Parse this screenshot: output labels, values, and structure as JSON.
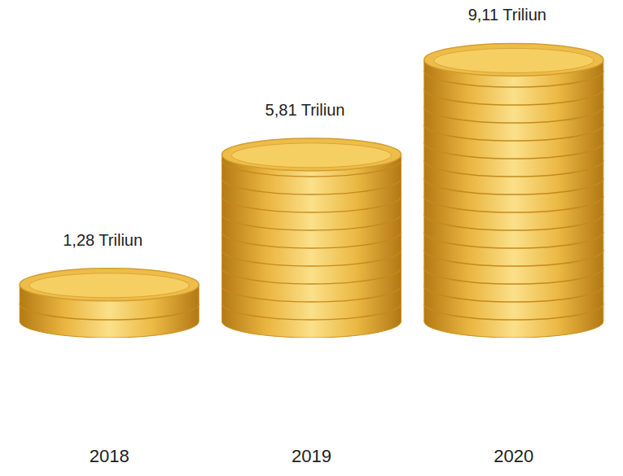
{
  "chart_data": {
    "type": "bar",
    "categories": [
      "2018",
      "2019",
      "2020"
    ],
    "values": [
      1.28,
      5.81,
      9.11
    ],
    "value_labels": [
      "1,28 Triliun",
      "5,81 Triliun",
      "9,11 Triliun"
    ],
    "data_labels": true,
    "tick_labels": "x",
    "ylim": [
      0,
      10
    ],
    "color": "#e8b23c"
  }
}
